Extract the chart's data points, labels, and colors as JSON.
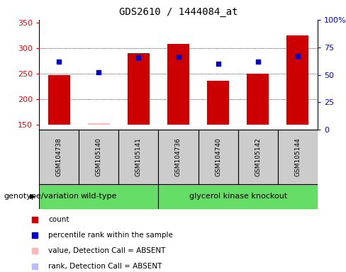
{
  "title": "GDS2610 / 1444084_at",
  "samples": [
    "GSM104738",
    "GSM105140",
    "GSM105141",
    "GSM104736",
    "GSM104740",
    "GSM105142",
    "GSM105144"
  ],
  "groups": [
    "wild-type",
    "wild-type",
    "wild-type",
    "glycerol kinase knockout",
    "glycerol kinase knockout",
    "glycerol kinase knockout",
    "glycerol kinase knockout"
  ],
  "bar_values": [
    247,
    153,
    290,
    308,
    236,
    249,
    325
  ],
  "bar_absent": [
    false,
    true,
    false,
    false,
    false,
    false,
    false
  ],
  "rank_values": [
    273,
    252,
    281,
    283,
    269,
    273,
    284
  ],
  "rank_absent": [
    false,
    false,
    false,
    false,
    false,
    false,
    false
  ],
  "ymin": 140,
  "ymax": 355,
  "yticks": [
    150,
    200,
    250,
    300,
    350
  ],
  "right_yticks": [
    0,
    25,
    50,
    75,
    100
  ],
  "bar_color_present": "#CC0000",
  "bar_color_absent": "#FFB6B6",
  "rank_color_present": "#0000CC",
  "rank_color_absent": "#BBBBFF",
  "bar_width": 0.55,
  "gray_box_color": "#CCCCCC",
  "green_box_color": "#66DD66",
  "genotype_label": "genotype/variation",
  "legend_items": [
    {
      "label": "count",
      "color": "#CC0000"
    },
    {
      "label": "percentile rank within the sample",
      "color": "#0000CC"
    },
    {
      "label": "value, Detection Call = ABSENT",
      "color": "#FFB6B6"
    },
    {
      "label": "rank, Detection Call = ABSENT",
      "color": "#BBBBFF"
    }
  ]
}
